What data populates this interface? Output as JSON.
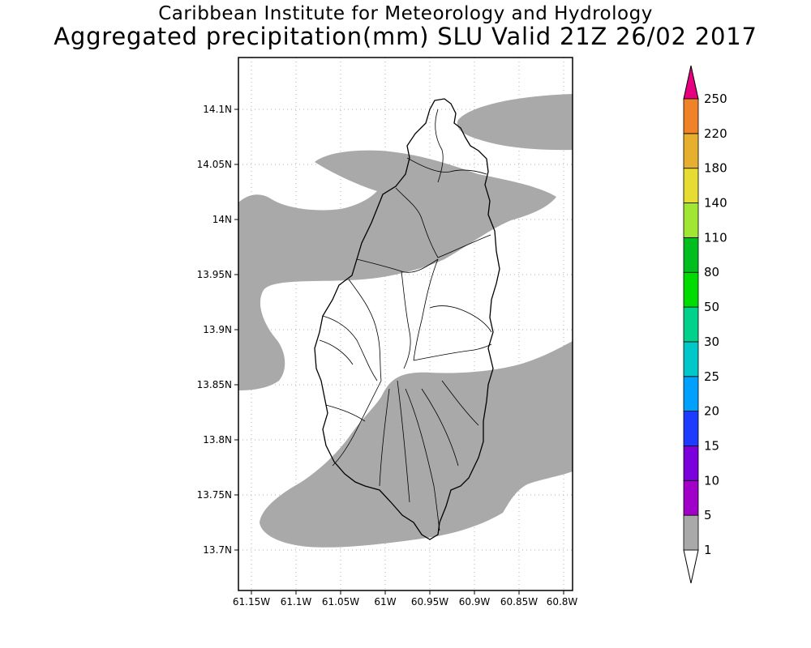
{
  "header": {
    "line1": "Caribbean Institute for Meteorology and Hydrology",
    "line2": "Aggregated precipitation(mm) SLU Valid 21Z 26/02 2017"
  },
  "map": {
    "lon_ticks": [
      "61.15W",
      "61.1W",
      "61.05W",
      "61W",
      "60.95W",
      "60.9W",
      "60.85W",
      "60.8W"
    ],
    "lat_ticks": [
      "14.1N",
      "14.05N",
      "14N",
      "13.95N",
      "13.9N",
      "13.85N",
      "13.8N",
      "13.75N",
      "13.7N"
    ],
    "precip_fill_color": "#a9a9a9",
    "precip_category": "1-5"
  },
  "colorbar": {
    "levels": [
      "1",
      "5",
      "10",
      "15",
      "20",
      "25",
      "30",
      "50",
      "80",
      "110",
      "140",
      "180",
      "220",
      "250"
    ],
    "colors": [
      "#a9a9a9",
      "#a000c8",
      "#7b00dc",
      "#1e3cff",
      "#00a0ff",
      "#00c8c8",
      "#00d28c",
      "#00dc00",
      "#00be1e",
      "#a0e632",
      "#e6dc32",
      "#e6af2d",
      "#f08228",
      "#fa3c3c",
      "#e6007f"
    ],
    "below_color": "#ffffff"
  }
}
